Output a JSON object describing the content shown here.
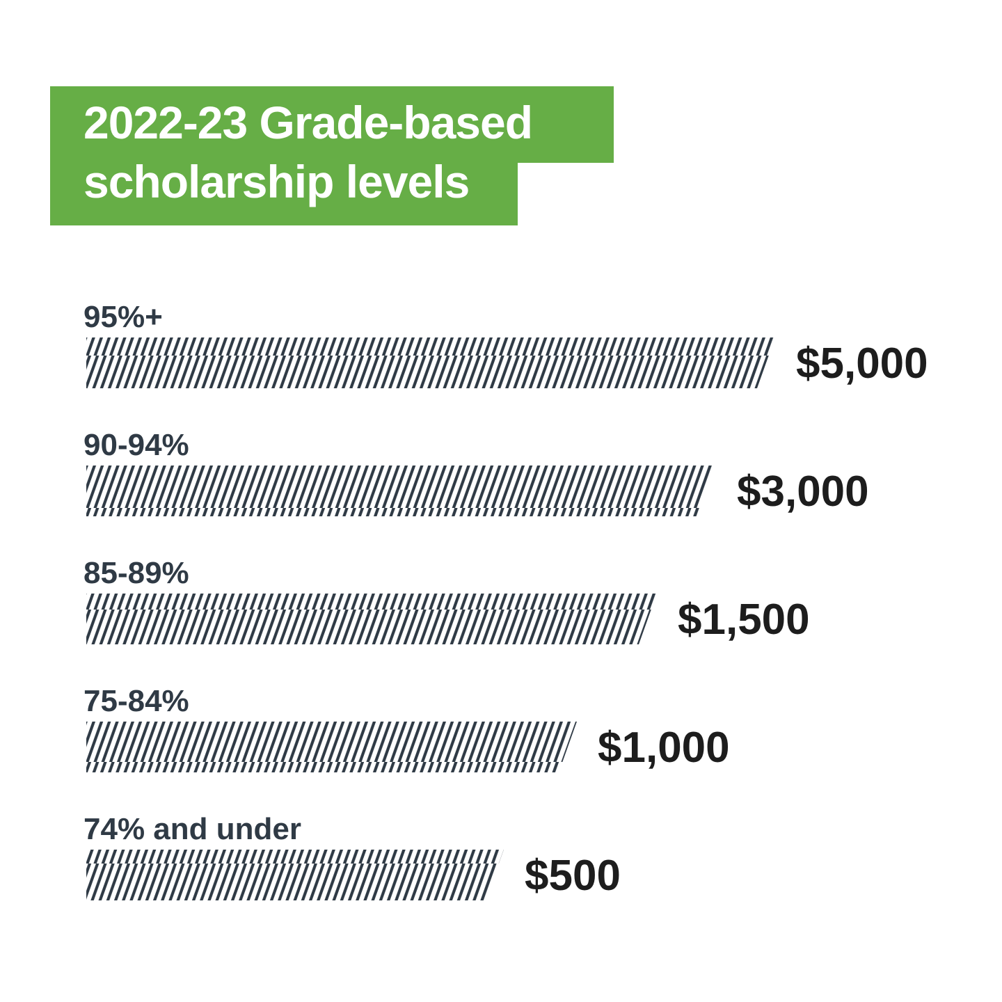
{
  "title": {
    "line1": "2022-23 Grade-based",
    "line2": "scholarship levels"
  },
  "colors": {
    "title_background": "#66ae46",
    "title_text": "#ffffff",
    "bar_stripe": "#2f3a45",
    "category_text": "#2f3a45",
    "value_text": "#1d1d1d",
    "background": "#ffffff"
  },
  "chart_data": {
    "type": "bar",
    "orientation": "horizontal",
    "bar_style": "diagonal-hatch",
    "categories": [
      "95%+",
      "90-94%",
      "85-89%",
      "75-84%",
      "74% and under"
    ],
    "values": [
      5000,
      3000,
      1500,
      1000,
      500
    ],
    "value_labels": [
      "$5,000",
      "$3,000",
      "$1,500",
      "$1,000",
      "$500"
    ],
    "xlabel": "",
    "ylabel": "",
    "grid": false,
    "legend": "none"
  }
}
